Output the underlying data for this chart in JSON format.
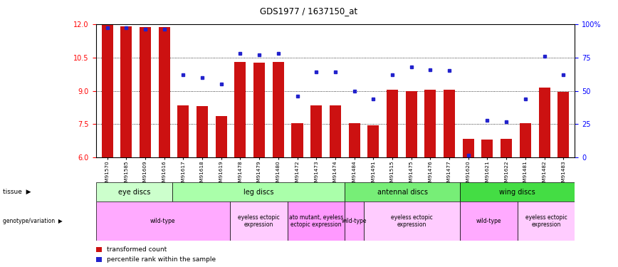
{
  "title": "GDS1977 / 1637150_at",
  "samples": [
    "GSM91570",
    "GSM91585",
    "GSM91609",
    "GSM91616",
    "GSM91617",
    "GSM91618",
    "GSM91619",
    "GSM91478",
    "GSM91479",
    "GSM91480",
    "GSM91472",
    "GSM91473",
    "GSM91474",
    "GSM91484",
    "GSM91491",
    "GSM91515",
    "GSM91475",
    "GSM91476",
    "GSM91477",
    "GSM91620",
    "GSM91621",
    "GSM91622",
    "GSM91481",
    "GSM91482",
    "GSM91483"
  ],
  "bar_heights": [
    11.95,
    11.9,
    11.85,
    11.85,
    8.35,
    8.3,
    7.85,
    10.3,
    10.25,
    10.3,
    7.55,
    8.35,
    8.35,
    7.55,
    7.45,
    9.05,
    9.0,
    9.05,
    9.05,
    6.85,
    6.8,
    6.85,
    7.55,
    9.15,
    8.95
  ],
  "blue_dots_pct": [
    97,
    97,
    96,
    96,
    62,
    60,
    55,
    78,
    77,
    78,
    46,
    64,
    64,
    50,
    44,
    62,
    68,
    66,
    65,
    2,
    28,
    27,
    44,
    76,
    62
  ],
  "tissue_groups": [
    {
      "label": "eye discs",
      "start": 0,
      "end": 3,
      "color": "#ccffcc"
    },
    {
      "label": "leg discs",
      "start": 4,
      "end": 12,
      "color": "#aaffaa"
    },
    {
      "label": "antennal discs",
      "start": 13,
      "end": 18,
      "color": "#77ee77"
    },
    {
      "label": "wing discs",
      "start": 19,
      "end": 24,
      "color": "#44dd44"
    }
  ],
  "genotype_groups": [
    {
      "label": "wild-type",
      "start": 0,
      "end": 6,
      "color": "#ffaaff"
    },
    {
      "label": "eyeless ectopic\nexpression",
      "start": 7,
      "end": 9,
      "color": "#ffccff"
    },
    {
      "label": "ato mutant, eyeless\nectopic expression",
      "start": 10,
      "end": 12,
      "color": "#ff99ff"
    },
    {
      "label": "wild-type",
      "start": 13,
      "end": 13,
      "color": "#ffaaff"
    },
    {
      "label": "eyeless ectopic\nexpression",
      "start": 14,
      "end": 18,
      "color": "#ffccff"
    },
    {
      "label": "wild-type",
      "start": 19,
      "end": 21,
      "color": "#ffaaff"
    },
    {
      "label": "eyeless ectopic\nexpression",
      "start": 22,
      "end": 24,
      "color": "#ffccff"
    }
  ],
  "ymin": 6.0,
  "ymax": 12.0,
  "yticks_left": [
    6.0,
    7.5,
    9.0,
    10.5,
    12.0
  ],
  "yticks_right": [
    0,
    25,
    50,
    75,
    100
  ],
  "ytick_right_labels": [
    "0",
    "25",
    "50",
    "75",
    "100%"
  ],
  "bar_color": "#cc1111",
  "dot_color": "#2222cc",
  "grid_dotted_at": [
    7.5,
    9.0,
    10.5
  ]
}
